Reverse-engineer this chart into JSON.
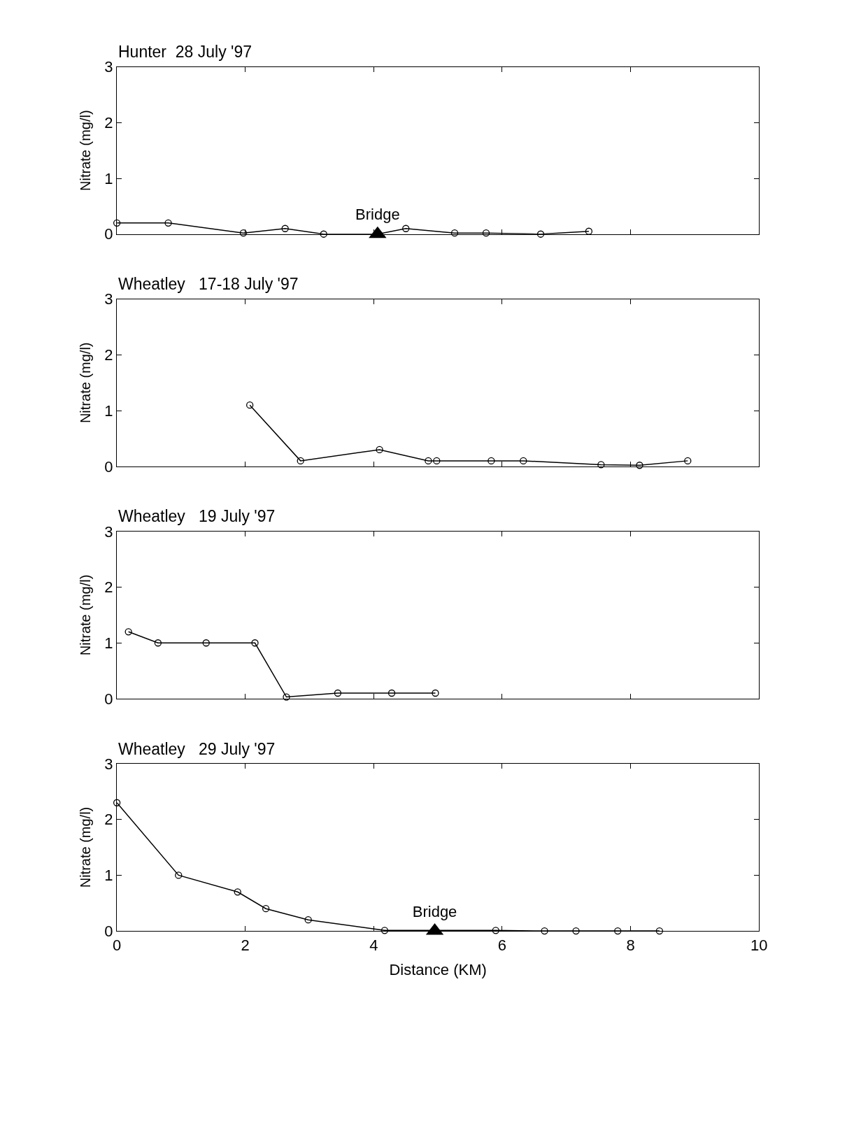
{
  "chart_data": [
    {
      "type": "line",
      "title": "Hunter  28 July '97",
      "ylabel": "Nitrate (mg/l)",
      "xlim": [
        0,
        10
      ],
      "xticks": [
        0,
        2,
        4,
        6,
        8,
        10
      ],
      "ylim": [
        0,
        3
      ],
      "yticks": [
        0,
        1,
        2,
        3
      ],
      "tick_labels": "y",
      "marker": "circle",
      "line_style": "solid",
      "x": [
        0,
        0.8,
        1.97,
        2.62,
        3.22,
        4.06,
        4.5,
        5.26,
        5.75,
        6.6,
        7.35
      ],
      "series": [
        {
          "color": "#000000",
          "values": [
            0.2,
            0.2,
            0.02,
            0.1,
            0.0,
            0.0,
            0.1,
            0.02,
            0.02,
            0.0,
            0.05
          ]
        }
      ],
      "annotations": [
        {
          "text": "Bridge",
          "x": 4.06,
          "y": 0
        }
      ]
    },
    {
      "type": "line",
      "title": "Wheatley   17-18 July '97",
      "ylabel": "Nitrate (mg/l)",
      "xlim": [
        0,
        10
      ],
      "xticks": [
        0,
        2,
        4,
        6,
        8,
        10
      ],
      "ylim": [
        0,
        3
      ],
      "yticks": [
        0,
        1,
        2,
        3
      ],
      "tick_labels": "y",
      "marker": "circle",
      "line_style": "solid",
      "x": [
        2.07,
        2.86,
        4.09,
        4.85,
        4.98,
        5.83,
        6.33,
        7.54,
        8.14,
        8.89
      ],
      "series": [
        {
          "color": "#000000",
          "values": [
            1.1,
            0.1,
            0.3,
            0.1,
            0.1,
            0.1,
            0.1,
            0.03,
            0.02,
            0.1
          ]
        }
      ]
    },
    {
      "type": "line",
      "title": "Wheatley   19 July '97",
      "ylabel": "Nitrate (mg/l)",
      "xlim": [
        0,
        10
      ],
      "xticks": [
        0,
        2,
        4,
        6,
        8,
        10
      ],
      "ylim": [
        0,
        3
      ],
      "yticks": [
        0,
        1,
        2,
        3
      ],
      "tick_labels": "y",
      "marker": "circle",
      "line_style": "solid",
      "x": [
        0.18,
        0.64,
        1.39,
        2.15,
        2.64,
        3.44,
        4.28,
        4.96
      ],
      "series": [
        {
          "color": "#000000",
          "values": [
            1.2,
            1.0,
            1.0,
            1.0,
            0.03,
            0.1,
            0.1,
            0.1
          ]
        }
      ]
    },
    {
      "type": "line",
      "title": "Wheatley   29 July '97",
      "ylabel": "Nitrate (mg/l)",
      "xlabel": "Distance (KM)",
      "xlim": [
        0,
        10
      ],
      "xticks": [
        0,
        2,
        4,
        6,
        8,
        10
      ],
      "ylim": [
        0,
        3
      ],
      "yticks": [
        0,
        1,
        2,
        3
      ],
      "marker": "circle",
      "line_style": "solid",
      "x": [
        0,
        0.96,
        1.88,
        2.32,
        2.98,
        4.17,
        4.95,
        5.9,
        6.66,
        7.15,
        7.8,
        8.45
      ],
      "series": [
        {
          "color": "#000000",
          "values": [
            2.3,
            1.0,
            0.7,
            0.4,
            0.2,
            0.01,
            0.01,
            0.01,
            0.0,
            0.0,
            0.0,
            0.0
          ]
        }
      ],
      "annotations": [
        {
          "text": "Bridge",
          "x": 4.95,
          "y": 0
        }
      ]
    }
  ]
}
